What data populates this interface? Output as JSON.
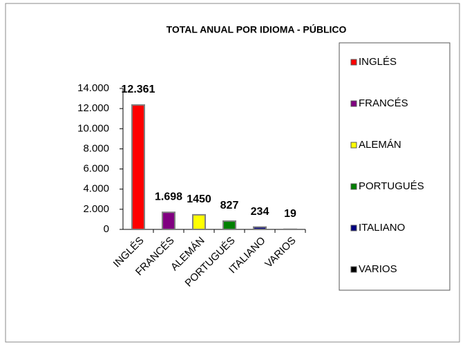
{
  "chart_data": {
    "type": "bar",
    "title": "TOTAL ANUAL POR IDIOMA - PÚBLICO",
    "categories": [
      "INGLÉS",
      "FRANCÉS",
      "ALEMÁN",
      "PORTUGUÉS",
      "ITALIANO",
      "VARIOS"
    ],
    "values": [
      12361,
      1698,
      1450,
      827,
      234,
      19
    ],
    "value_labels": [
      "12.361",
      "1.698",
      "1450",
      "827",
      "234",
      "19"
    ],
    "colors": [
      "#ff0000",
      "#800080",
      "#ffff00",
      "#008000",
      "#000080",
      "#000000"
    ],
    "ylim": [
      0,
      14000
    ],
    "yticks": [
      0,
      {
        "value": 2000,
        "label": "2.000"
      },
      {
        "value": 4000,
        "label": "4.000"
      },
      {
        "value": 6000,
        "label": "6.000"
      },
      {
        "value": 8000,
        "label": "8.000"
      },
      {
        "value": 10000,
        "label": "10.000"
      },
      {
        "value": 12000,
        "label": "12.000"
      },
      {
        "value": 14000,
        "label": "14.000"
      }
    ],
    "grid": false,
    "legend": "right"
  }
}
